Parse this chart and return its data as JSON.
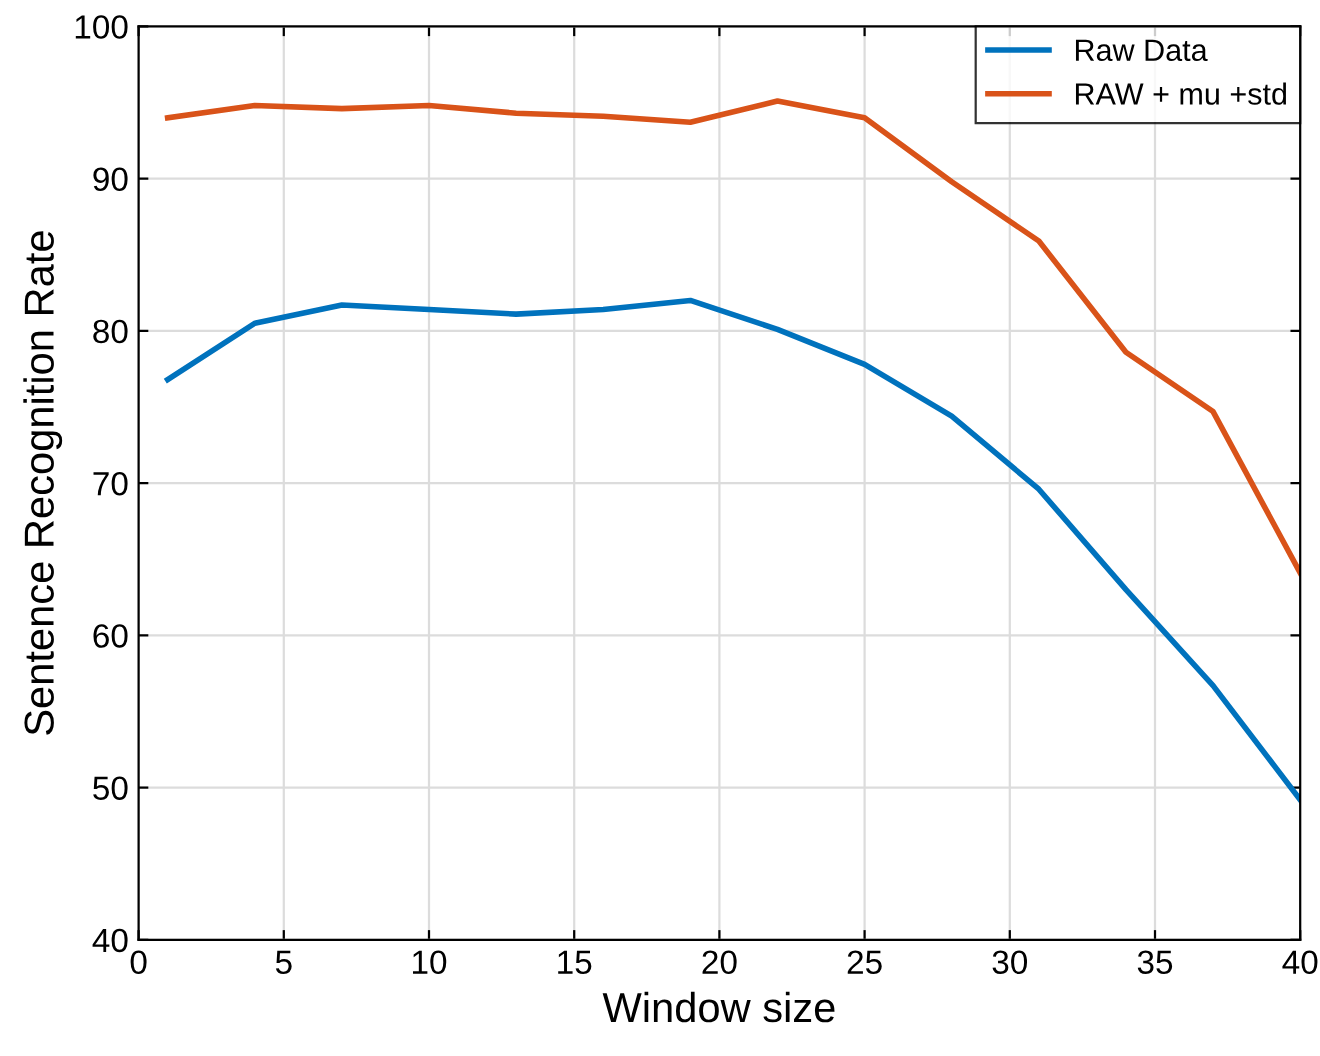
{
  "chart_data": {
    "type": "line",
    "xlabel": "Window size",
    "ylabel": "Sentence Recognition Rate",
    "x": [
      1,
      4,
      7,
      10,
      13,
      16,
      19,
      22,
      25,
      28,
      31,
      34,
      37,
      40
    ],
    "series": [
      {
        "name": "Raw Data",
        "color": "#0072bd",
        "values": [
          76.8,
          80.5,
          81.7,
          81.4,
          81.1,
          81.4,
          82.0,
          80.1,
          77.8,
          74.4,
          69.6,
          63.0,
          56.7,
          49.2
        ]
      },
      {
        "name": "RAW + mu +std",
        "color": "#d95319",
        "values": [
          94.0,
          94.8,
          94.6,
          94.8,
          94.3,
          94.1,
          93.7,
          95.1,
          94.0,
          89.8,
          85.9,
          78.6,
          74.7,
          64.1
        ]
      }
    ],
    "xlim": [
      0,
      40
    ],
    "xticks": [
      0,
      5,
      10,
      15,
      20,
      25,
      30,
      35,
      40
    ],
    "ylim": [
      40,
      100
    ],
    "yticks": [
      40,
      50,
      60,
      70,
      80,
      90,
      100
    ],
    "grid": true,
    "legend": "top right"
  }
}
